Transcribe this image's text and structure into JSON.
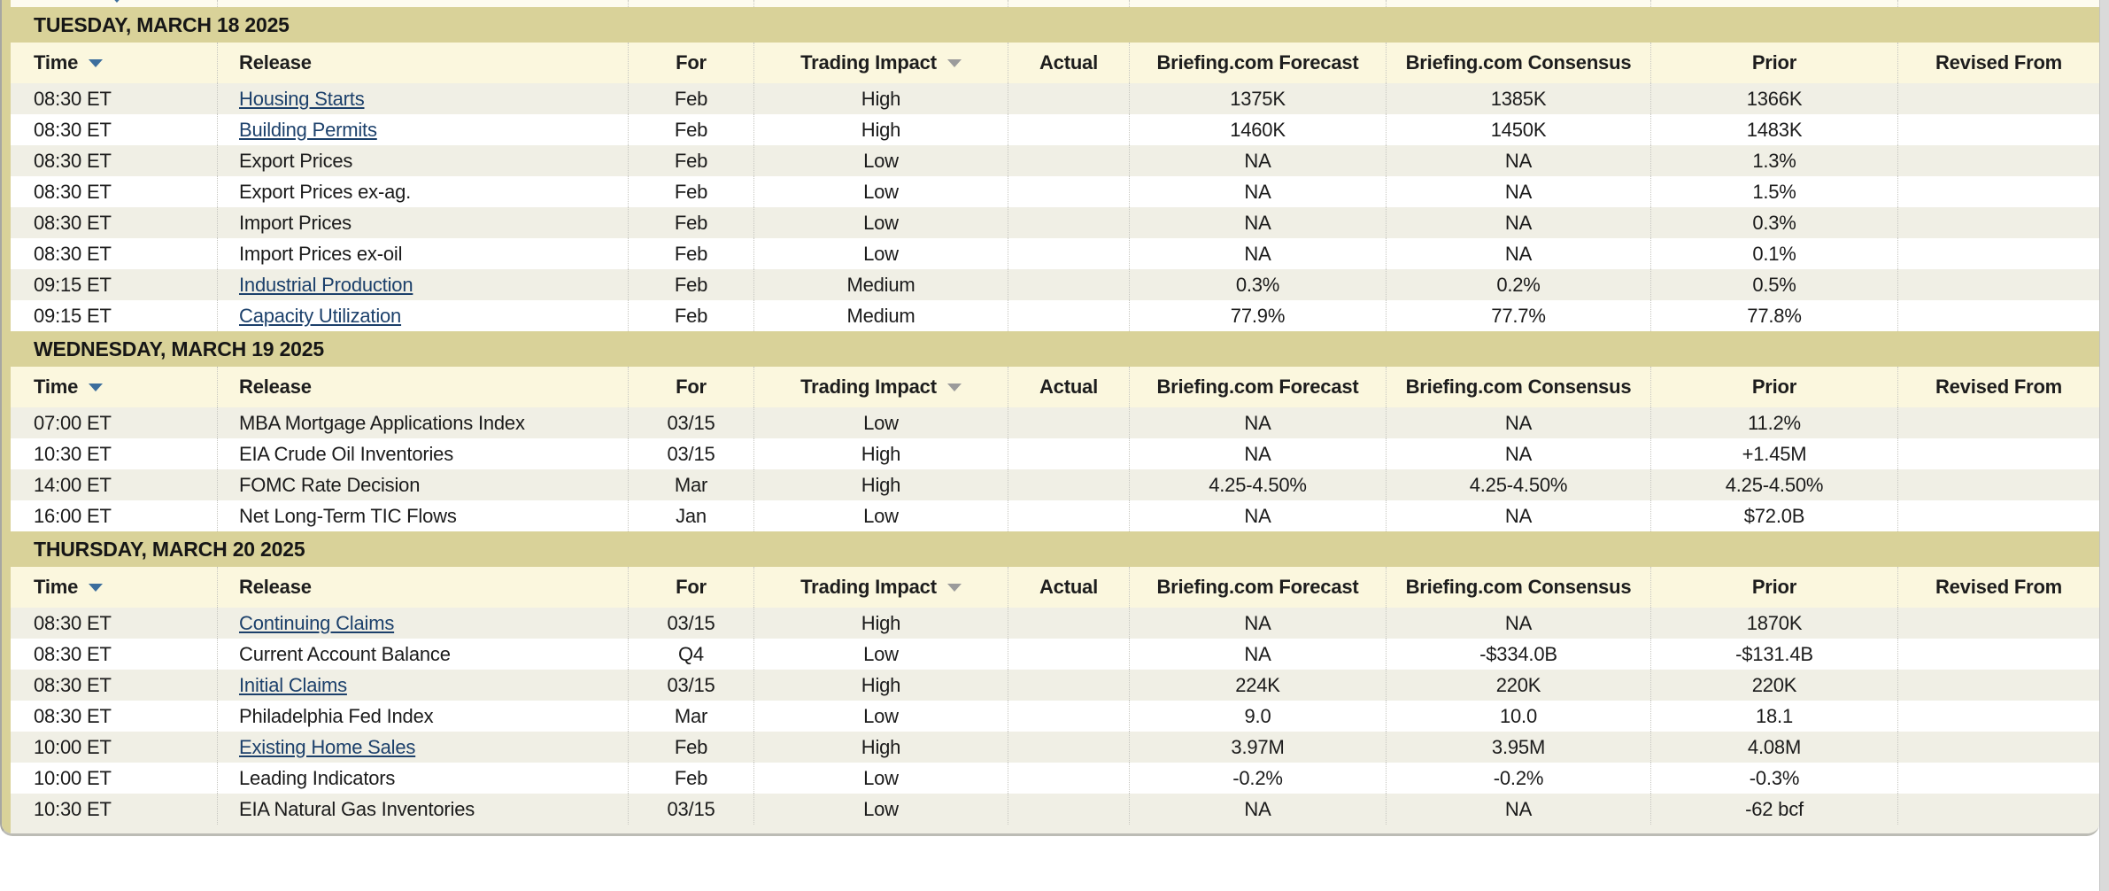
{
  "table": {
    "columns": [
      {
        "label": "Time",
        "sortable": true,
        "sort_arrow": "blue"
      },
      {
        "label": "Release",
        "sortable": false
      },
      {
        "label": "For",
        "sortable": false
      },
      {
        "label": "Trading Impact",
        "sortable": true,
        "sort_arrow": "gray"
      },
      {
        "label": "Actual",
        "sortable": false
      },
      {
        "label": "Briefing.com Forecast",
        "sortable": false
      },
      {
        "label": "Briefing.com Consensus",
        "sortable": false
      },
      {
        "label": "Prior",
        "sortable": false
      },
      {
        "label": "Revised From",
        "sortable": false
      }
    ],
    "sections": [
      {
        "date": "TUESDAY, MARCH 18 2025",
        "rows": [
          {
            "time": "08:30 ET",
            "release": "Housing Starts",
            "link": true,
            "for": "Feb",
            "impact": "High",
            "actual": "",
            "forecast": "1375K",
            "consensus": "1385K",
            "prior": "1366K",
            "revised": ""
          },
          {
            "time": "08:30 ET",
            "release": "Building Permits",
            "link": true,
            "for": "Feb",
            "impact": "High",
            "actual": "",
            "forecast": "1460K",
            "consensus": "1450K",
            "prior": "1483K",
            "revised": ""
          },
          {
            "time": "08:30 ET",
            "release": "Export Prices",
            "link": false,
            "for": "Feb",
            "impact": "Low",
            "actual": "",
            "forecast": "NA",
            "consensus": "NA",
            "prior": "1.3%",
            "revised": ""
          },
          {
            "time": "08:30 ET",
            "release": "Export Prices ex-ag.",
            "link": false,
            "for": "Feb",
            "impact": "Low",
            "actual": "",
            "forecast": "NA",
            "consensus": "NA",
            "prior": "1.5%",
            "revised": ""
          },
          {
            "time": "08:30 ET",
            "release": "Import Prices",
            "link": false,
            "for": "Feb",
            "impact": "Low",
            "actual": "",
            "forecast": "NA",
            "consensus": "NA",
            "prior": "0.3%",
            "revised": ""
          },
          {
            "time": "08:30 ET",
            "release": "Import Prices ex-oil",
            "link": false,
            "for": "Feb",
            "impact": "Low",
            "actual": "",
            "forecast": "NA",
            "consensus": "NA",
            "prior": "0.1%",
            "revised": ""
          },
          {
            "time": "09:15 ET",
            "release": "Industrial Production",
            "link": true,
            "for": "Feb",
            "impact": "Medium",
            "actual": "",
            "forecast": "0.3%",
            "consensus": "0.2%",
            "prior": "0.5%",
            "revised": ""
          },
          {
            "time": "09:15 ET",
            "release": "Capacity Utilization",
            "link": true,
            "for": "Feb",
            "impact": "Medium",
            "actual": "",
            "forecast": "77.9%",
            "consensus": "77.7%",
            "prior": "77.8%",
            "revised": ""
          }
        ]
      },
      {
        "date": "WEDNESDAY, MARCH 19 2025",
        "rows": [
          {
            "time": "07:00 ET",
            "release": "MBA Mortgage Applications Index",
            "link": false,
            "for": "03/15",
            "impact": "Low",
            "actual": "",
            "forecast": "NA",
            "consensus": "NA",
            "prior": "11.2%",
            "revised": ""
          },
          {
            "time": "10:30 ET",
            "release": "EIA Crude Oil Inventories",
            "link": false,
            "for": "03/15",
            "impact": "High",
            "actual": "",
            "forecast": "NA",
            "consensus": "NA",
            "prior": "+1.45M",
            "revised": ""
          },
          {
            "time": "14:00 ET",
            "release": "FOMC Rate Decision",
            "link": false,
            "for": "Mar",
            "impact": "High",
            "actual": "",
            "forecast": "4.25-4.50%",
            "consensus": "4.25-4.50%",
            "prior": "4.25-4.50%",
            "revised": ""
          },
          {
            "time": "16:00 ET",
            "release": "Net Long-Term TIC Flows",
            "link": false,
            "for": "Jan",
            "impact": "Low",
            "actual": "",
            "forecast": "NA",
            "consensus": "NA",
            "prior": "$72.0B",
            "revised": ""
          }
        ]
      },
      {
        "date": "THURSDAY, MARCH 20 2025",
        "rows": [
          {
            "time": "08:30 ET",
            "release": "Continuing Claims",
            "link": true,
            "for": "03/15",
            "impact": "High",
            "actual": "",
            "forecast": "NA",
            "consensus": "NA",
            "prior": "1870K",
            "revised": ""
          },
          {
            "time": "08:30 ET",
            "release": "Current Account Balance",
            "link": false,
            "for": "Q4",
            "impact": "Low",
            "actual": "",
            "forecast": "NA",
            "consensus": "-$334.0B",
            "prior": "-$131.4B",
            "revised": ""
          },
          {
            "time": "08:30 ET",
            "release": "Initial Claims",
            "link": true,
            "for": "03/15",
            "impact": "High",
            "actual": "",
            "forecast": "224K",
            "consensus": "220K",
            "prior": "220K",
            "revised": ""
          },
          {
            "time": "08:30 ET",
            "release": "Philadelphia Fed Index",
            "link": false,
            "for": "Mar",
            "impact": "Low",
            "actual": "",
            "forecast": "9.0",
            "consensus": "10.0",
            "prior": "18.1",
            "revised": ""
          },
          {
            "time": "10:00 ET",
            "release": "Existing Home Sales",
            "link": true,
            "for": "Feb",
            "impact": "High",
            "actual": "",
            "forecast": "3.97M",
            "consensus": "3.95M",
            "prior": "4.08M",
            "revised": ""
          },
          {
            "time": "10:00 ET",
            "release": "Leading Indicators",
            "link": false,
            "for": "Feb",
            "impact": "Low",
            "actual": "",
            "forecast": "-0.2%",
            "consensus": "-0.2%",
            "prior": "-0.3%",
            "revised": ""
          },
          {
            "time": "10:30 ET",
            "release": "EIA Natural Gas Inventories",
            "link": false,
            "for": "03/15",
            "impact": "Low",
            "actual": "",
            "forecast": "NA",
            "consensus": "NA",
            "prior": "-62 bcf",
            "revised": ""
          }
        ]
      }
    ],
    "colors": {
      "day_band": "#d9d299",
      "header_row": "#fbf7de",
      "stripe_row": "#f0efe5",
      "link": "#1c406b",
      "sort_arrow_blue": "#3c6e9d",
      "sort_arrow_gray": "#9b9b9b"
    }
  }
}
